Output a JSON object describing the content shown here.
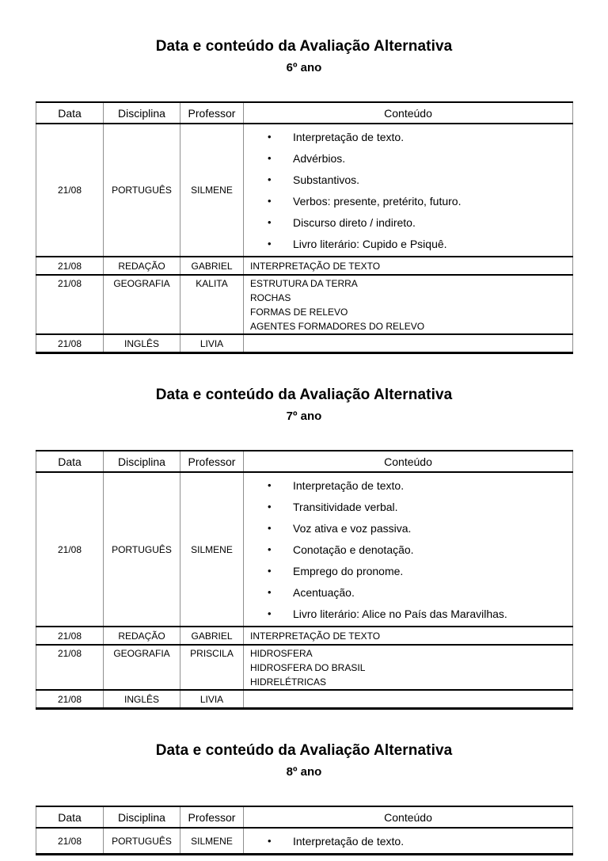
{
  "document": {
    "bullet_glyph": "•",
    "styles": {
      "text_color": "#000000",
      "heavy_border_color": "#000000",
      "light_border_color": "#8f8f8f",
      "background": "#ffffff"
    },
    "sections": [
      {
        "title": "Data e conteúdo da Avaliação Alternativa",
        "subtitle": "6º ano",
        "table": {
          "headers": [
            "Data",
            "Disciplina",
            "Professor",
            "Conteúdo"
          ],
          "rows": [
            {
              "date": "21/08",
              "subject": "PORTUGUÊS",
              "teacher": "SILMENE",
              "bullets": [
                "Interpretação de texto.",
                "Advérbios.",
                "Substantivos.",
                "Verbos: presente, pretérito, futuro.",
                "Discurso direto / indireto.",
                "Livro literário: Cupido e Psiquê."
              ]
            },
            {
              "date": "21/08",
              "subject": "REDAÇÃO",
              "teacher": "GABRIEL",
              "lines": [
                "INTERPRETAÇÃO DE TEXTO"
              ]
            },
            {
              "date": "21/08",
              "subject": "GEOGRAFIA",
              "teacher": "KALITA",
              "lines": [
                "ESTRUTURA DA TERRA",
                "ROCHAS",
                "FORMAS DE RELEVO",
                "AGENTES FORMADORES DO RELEVO"
              ]
            },
            {
              "date": "21/08",
              "subject": "INGLÊS",
              "teacher": "LIVIA",
              "lines": []
            }
          ]
        }
      },
      {
        "title": "Data e conteúdo da Avaliação Alternativa",
        "subtitle": "7º ano",
        "table": {
          "headers": [
            "Data",
            "Disciplina",
            "Professor",
            "Conteúdo"
          ],
          "rows": [
            {
              "date": "21/08",
              "subject": "PORTUGUÊS",
              "teacher": "SILMENE",
              "bullets": [
                "Interpretação de texto.",
                "Transitividade verbal.",
                "Voz ativa e voz passiva.",
                "Conotação e denotação.",
                "Emprego do pronome.",
                "Acentuação.",
                "Livro literário: Alice no País das Maravilhas."
              ]
            },
            {
              "date": "21/08",
              "subject": "REDAÇÃO",
              "teacher": "GABRIEL",
              "lines": [
                "INTERPRETAÇÃO DE TEXTO"
              ]
            },
            {
              "date": "21/08",
              "subject": "GEOGRAFIA",
              "teacher": "PRISCILA",
              "lines": [
                "HIDROSFERA",
                "HIDROSFERA DO BRASIL",
                "HIDRELÉTRICAS"
              ]
            },
            {
              "date": "21/08",
              "subject": "INGLÊS",
              "teacher": "LIVIA",
              "lines": []
            }
          ]
        }
      },
      {
        "title": "Data e conteúdo da Avaliação Alternativa",
        "subtitle": "8º ano",
        "table": {
          "headers": [
            "Data",
            "Disciplina",
            "Professor",
            "Conteúdo"
          ],
          "rows": [
            {
              "date": "21/08",
              "subject": "PORTUGUÊS",
              "teacher": "SILMENE",
              "bullets": [
                "Interpretação de texto."
              ]
            }
          ]
        }
      }
    ]
  }
}
